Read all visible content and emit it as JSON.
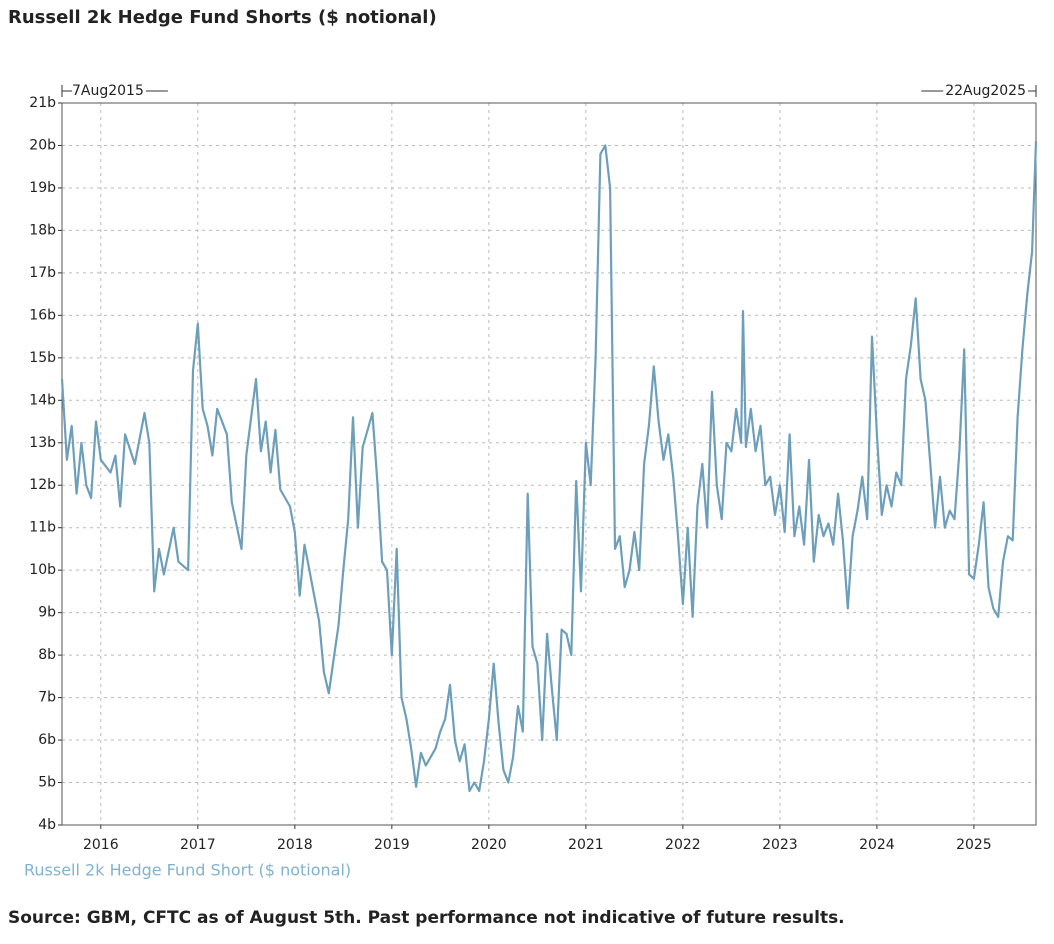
{
  "chart_data": {
    "type": "line",
    "title": "Russell 2k Hedge Fund Shorts ($ notional)",
    "footnote": "Source: GBM, CFTC as of August 5th. Past performance not indicative of future results.",
    "annotations": [
      "7Aug2015",
      "22Aug2025"
    ],
    "grid": true,
    "xlim": [
      2015.6,
      2025.64
    ],
    "xticks": [
      2016,
      2017,
      2018,
      2019,
      2020,
      2021,
      2022,
      2023,
      2024,
      2025
    ],
    "ylim": [
      4,
      21
    ],
    "yticks": [
      {
        "value": 4,
        "label": "4b"
      },
      {
        "value": 5,
        "label": "5b"
      },
      {
        "value": 6,
        "label": "6b"
      },
      {
        "value": 7,
        "label": "7b"
      },
      {
        "value": 8,
        "label": "8b"
      },
      {
        "value": 9,
        "label": "9b"
      },
      {
        "value": 10,
        "label": "10b"
      },
      {
        "value": 11,
        "label": "11b"
      },
      {
        "value": 12,
        "label": "12b"
      },
      {
        "value": 13,
        "label": "13b"
      },
      {
        "value": 14,
        "label": "14b"
      },
      {
        "value": 15,
        "label": "15b"
      },
      {
        "value": 16,
        "label": "16b"
      },
      {
        "value": 17,
        "label": "17b"
      },
      {
        "value": 18,
        "label": "18b"
      },
      {
        "value": 19,
        "label": "19b"
      },
      {
        "value": 20,
        "label": "20b"
      },
      {
        "value": 21,
        "label": "21b"
      }
    ],
    "x": [
      2015.6,
      2015.65,
      2015.7,
      2015.75,
      2015.8,
      2015.85,
      2015.9,
      2015.95,
      2016.0,
      2016.1,
      2016.15,
      2016.2,
      2016.25,
      2016.35,
      2016.45,
      2016.5,
      2016.55,
      2016.6,
      2016.65,
      2016.75,
      2016.8,
      2016.9,
      2016.95,
      2017.0,
      2017.05,
      2017.1,
      2017.15,
      2017.2,
      2017.3,
      2017.35,
      2017.45,
      2017.5,
      2017.6,
      2017.65,
      2017.7,
      2017.75,
      2017.8,
      2017.85,
      2017.95,
      2018.0,
      2018.05,
      2018.1,
      2018.15,
      2018.2,
      2018.25,
      2018.3,
      2018.35,
      2018.4,
      2018.45,
      2018.5,
      2018.55,
      2018.6,
      2018.65,
      2018.7,
      2018.75,
      2018.8,
      2018.85,
      2018.9,
      2018.95,
      2019.0,
      2019.05,
      2019.1,
      2019.15,
      2019.2,
      2019.25,
      2019.3,
      2019.35,
      2019.45,
      2019.5,
      2019.55,
      2019.6,
      2019.65,
      2019.7,
      2019.75,
      2019.8,
      2019.85,
      2019.9,
      2019.95,
      2020.0,
      2020.05,
      2020.1,
      2020.15,
      2020.2,
      2020.25,
      2020.3,
      2020.35,
      2020.4,
      2020.45,
      2020.5,
      2020.55,
      2020.6,
      2020.65,
      2020.7,
      2020.75,
      2020.8,
      2020.85,
      2020.9,
      2020.95,
      2021.0,
      2021.05,
      2021.1,
      2021.15,
      2021.2,
      2021.25,
      2021.3,
      2021.35,
      2021.4,
      2021.45,
      2021.5,
      2021.55,
      2021.6,
      2021.65,
      2021.7,
      2021.75,
      2021.8,
      2021.85,
      2021.9,
      2021.95,
      2022.0,
      2022.05,
      2022.1,
      2022.15,
      2022.2,
      2022.25,
      2022.3,
      2022.35,
      2022.4,
      2022.45,
      2022.5,
      2022.55,
      2022.6,
      2022.62,
      2022.65,
      2022.7,
      2022.75,
      2022.8,
      2022.85,
      2022.9,
      2022.95,
      2023.0,
      2023.05,
      2023.1,
      2023.15,
      2023.2,
      2023.25,
      2023.3,
      2023.35,
      2023.4,
      2023.45,
      2023.5,
      2023.55,
      2023.6,
      2023.65,
      2023.7,
      2023.75,
      2023.8,
      2023.85,
      2023.9,
      2023.95,
      2024.0,
      2024.05,
      2024.1,
      2024.15,
      2024.2,
      2024.25,
      2024.3,
      2024.35,
      2024.4,
      2024.45,
      2024.5,
      2024.55,
      2024.6,
      2024.65,
      2024.7,
      2024.75,
      2024.8,
      2024.85,
      2024.9,
      2024.95,
      2025.0,
      2025.05,
      2025.1,
      2025.15,
      2025.2,
      2025.25,
      2025.3,
      2025.35,
      2025.4,
      2025.45,
      2025.5,
      2025.55,
      2025.6,
      2025.64
    ],
    "series": [
      {
        "name": "Russell 2k Hedge Fund Short ($ notional)",
        "color": "#6d9fbb",
        "values": [
          14.5,
          12.6,
          13.4,
          11.8,
          13.0,
          12.0,
          11.7,
          13.5,
          12.6,
          12.3,
          12.7,
          11.5,
          13.2,
          12.5,
          13.7,
          13.0,
          9.5,
          10.5,
          9.9,
          11.0,
          10.2,
          10.0,
          14.7,
          15.8,
          13.8,
          13.4,
          12.7,
          13.8,
          13.2,
          11.6,
          10.5,
          12.7,
          14.5,
          12.8,
          13.5,
          12.3,
          13.3,
          11.9,
          11.5,
          10.9,
          9.4,
          10.6,
          10.0,
          9.4,
          8.8,
          7.6,
          7.1,
          7.9,
          8.7,
          10.0,
          11.2,
          13.6,
          11.0,
          12.9,
          13.3,
          13.7,
          12.1,
          10.2,
          10.0,
          8.0,
          10.5,
          7.0,
          6.5,
          5.8,
          4.9,
          5.7,
          5.4,
          5.8,
          6.2,
          6.5,
          7.3,
          6.0,
          5.5,
          5.9,
          4.8,
          5.0,
          4.8,
          5.5,
          6.5,
          7.8,
          6.4,
          5.3,
          5.0,
          5.6,
          6.8,
          6.2,
          11.8,
          8.2,
          7.8,
          6.0,
          8.5,
          7.2,
          6.0,
          8.6,
          8.5,
          8.0,
          12.1,
          9.5,
          13.0,
          12.0,
          15.0,
          19.8,
          20.0,
          19.0,
          10.5,
          10.8,
          9.6,
          10.0,
          10.9,
          10.0,
          12.5,
          13.4,
          14.8,
          13.5,
          12.6,
          13.2,
          12.2,
          10.8,
          9.2,
          11.0,
          8.9,
          11.5,
          12.5,
          11.0,
          14.2,
          12.0,
          11.2,
          13.0,
          12.8,
          13.8,
          13.0,
          16.1,
          12.9,
          13.8,
          12.8,
          13.4,
          12.0,
          12.2,
          11.3,
          12.0,
          10.9,
          13.2,
          10.8,
          11.5,
          10.6,
          12.6,
          10.2,
          11.3,
          10.8,
          11.1,
          10.6,
          11.8,
          10.7,
          9.1,
          10.8,
          11.4,
          12.2,
          11.2,
          15.5,
          13.2,
          11.3,
          12.0,
          11.5,
          12.3,
          12.0,
          14.5,
          15.3,
          16.4,
          14.5,
          14.0,
          12.5,
          11.0,
          12.2,
          11.0,
          11.4,
          11.2,
          12.8,
          15.2,
          9.9,
          9.8,
          10.6,
          11.6,
          9.6,
          9.1,
          8.9,
          10.2,
          10.8,
          10.7,
          13.6,
          15.2,
          16.5,
          17.5,
          20.1
        ]
      }
    ]
  }
}
